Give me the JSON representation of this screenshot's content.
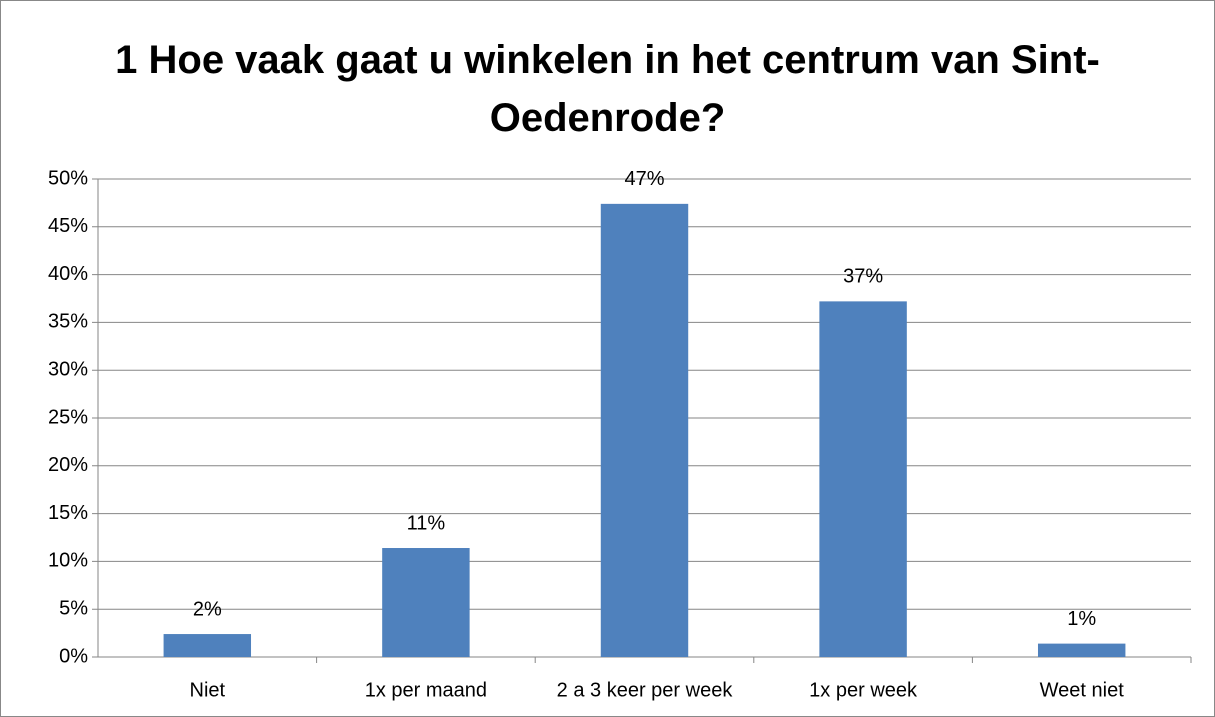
{
  "chart_data": {
    "type": "bar",
    "title": "1 Hoe vaak gaat u winkelen in het centrum van Sint-Oedenrode?",
    "categories": [
      "Niet",
      "1x per maand",
      "2 a 3 keer per week",
      "1x per week",
      "Weet niet"
    ],
    "values": [
      2.4,
      11.4,
      47.4,
      37.2,
      1.4
    ],
    "value_labels": [
      "2%",
      "11%",
      "47%",
      "37%",
      "1%"
    ],
    "color": "#4f81bd",
    "ylim": [
      0,
      50
    ],
    "yticks": [
      {
        "value": 0,
        "label": "0%"
      },
      {
        "value": 5,
        "label": "5%"
      },
      {
        "value": 10,
        "label": "10%"
      },
      {
        "value": 15,
        "label": "15%"
      },
      {
        "value": 20,
        "label": "20%"
      },
      {
        "value": 25,
        "label": "25%"
      },
      {
        "value": 30,
        "label": "30%"
      },
      {
        "value": 35,
        "label": "35%"
      },
      {
        "value": 40,
        "label": "40%"
      },
      {
        "value": 45,
        "label": "45%"
      },
      {
        "value": 50,
        "label": "50%"
      }
    ],
    "grid": true
  }
}
